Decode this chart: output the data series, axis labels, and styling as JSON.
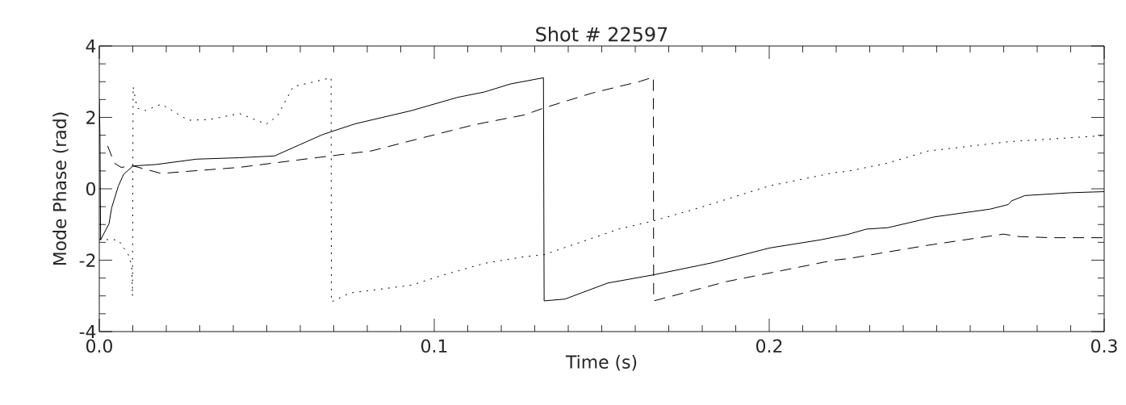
{
  "chart_data": {
    "type": "line",
    "title": "Shot #   22597",
    "xlabel": "Time (s)",
    "ylabel": "Mode Phase (rad)",
    "xlim": [
      0,
      0.3
    ],
    "ylim": [
      -4,
      4
    ],
    "xticks": [
      {
        "value": 0,
        "label": "0.0"
      },
      {
        "value": 0.1,
        "label": "0.1"
      },
      {
        "value": 0.2,
        "label": "0.2"
      },
      {
        "value": 0.3,
        "label": "0.3"
      }
    ],
    "yticks": [
      -4,
      -2,
      0,
      2,
      4
    ],
    "grid": false,
    "marker": "none",
    "series": [
      {
        "color": "#000000",
        "line_style": "solid",
        "x": [
          0,
          0.0002,
          0.0004,
          0.0029,
          0.0037,
          0.0057,
          0.0073,
          0.0101,
          0.0169,
          0.029,
          0.0418,
          0.0523,
          0.0667,
          0.0764,
          0.0932,
          0.1069,
          0.1149,
          0.1229,
          0.1326,
          0.1328,
          0.139,
          0.1518,
          0.1655,
          0.1831,
          0.2,
          0.2153,
          0.2234,
          0.229,
          0.2354,
          0.2491,
          0.2659,
          0.2714,
          0.2723,
          0.2763,
          0.29,
          0.3
        ],
        "values": [
          2.5,
          1.5,
          -1.43,
          -0.98,
          -0.53,
          0.08,
          0.41,
          0.64,
          0.68,
          0.83,
          0.87,
          0.92,
          1.52,
          1.82,
          2.19,
          2.56,
          2.71,
          2.94,
          3.11,
          -3.14,
          -3.09,
          -2.64,
          -2.41,
          -2.07,
          -1.66,
          -1.43,
          -1.28,
          -1.13,
          -1.09,
          -0.79,
          -0.57,
          -0.44,
          -0.34,
          -0.19,
          -0.11,
          -0.08
        ]
      },
      {
        "color": "#000000",
        "line_style": "dashed",
        "x": [
          0.0025,
          0.0045,
          0.0065,
          0.0101,
          0.0129,
          0.0185,
          0.0266,
          0.0418,
          0.0579,
          0.0707,
          0.0812,
          0.0949,
          0.1109,
          0.1149,
          0.127,
          0.1326,
          0.1471,
          0.1615,
          0.1654,
          0.1655,
          0.1712,
          0.1872,
          0.2033,
          0.2193,
          0.2234,
          0.2354,
          0.2475,
          0.2699,
          0.2747,
          0.2843,
          0.3
        ],
        "values": [
          1.2,
          0.72,
          0.6,
          0.64,
          0.57,
          0.43,
          0.49,
          0.6,
          0.79,
          0.94,
          1.06,
          1.39,
          1.77,
          1.85,
          2.07,
          2.26,
          2.68,
          3.01,
          3.13,
          -3.14,
          -3.0,
          -2.6,
          -2.3,
          -2.0,
          -1.96,
          -1.77,
          -1.58,
          -1.27,
          -1.34,
          -1.37,
          -1.37
        ]
      },
      {
        "color": "#000000",
        "line_style": "dotted",
        "x": [
          0,
          0.0057,
          0.0089,
          0.0097,
          0.0099,
          0.0101,
          0.0113,
          0.0137,
          0.0185,
          0.0266,
          0.033,
          0.0418,
          0.0499,
          0.0531,
          0.0579,
          0.0692,
          0.0693,
          0.0748,
          0.0932,
          0.1029,
          0.1149,
          0.127,
          0.1326,
          0.1551,
          0.1654,
          0.1792,
          0.2,
          0.2193,
          0.2234,
          0.2354,
          0.2475,
          0.2716,
          0.3
        ],
        "values": [
          -1.42,
          -1.43,
          -1.88,
          -2.19,
          -3.01,
          2.86,
          2.26,
          2.19,
          2.37,
          1.92,
          1.94,
          2.11,
          1.81,
          2.03,
          2.86,
          3.11,
          -3.17,
          -2.92,
          -2.7,
          -2.41,
          -2.09,
          -1.9,
          -1.85,
          -1.13,
          -0.9,
          -0.53,
          0.08,
          0.45,
          0.49,
          0.72,
          1.06,
          1.32,
          1.49
        ]
      }
    ]
  }
}
